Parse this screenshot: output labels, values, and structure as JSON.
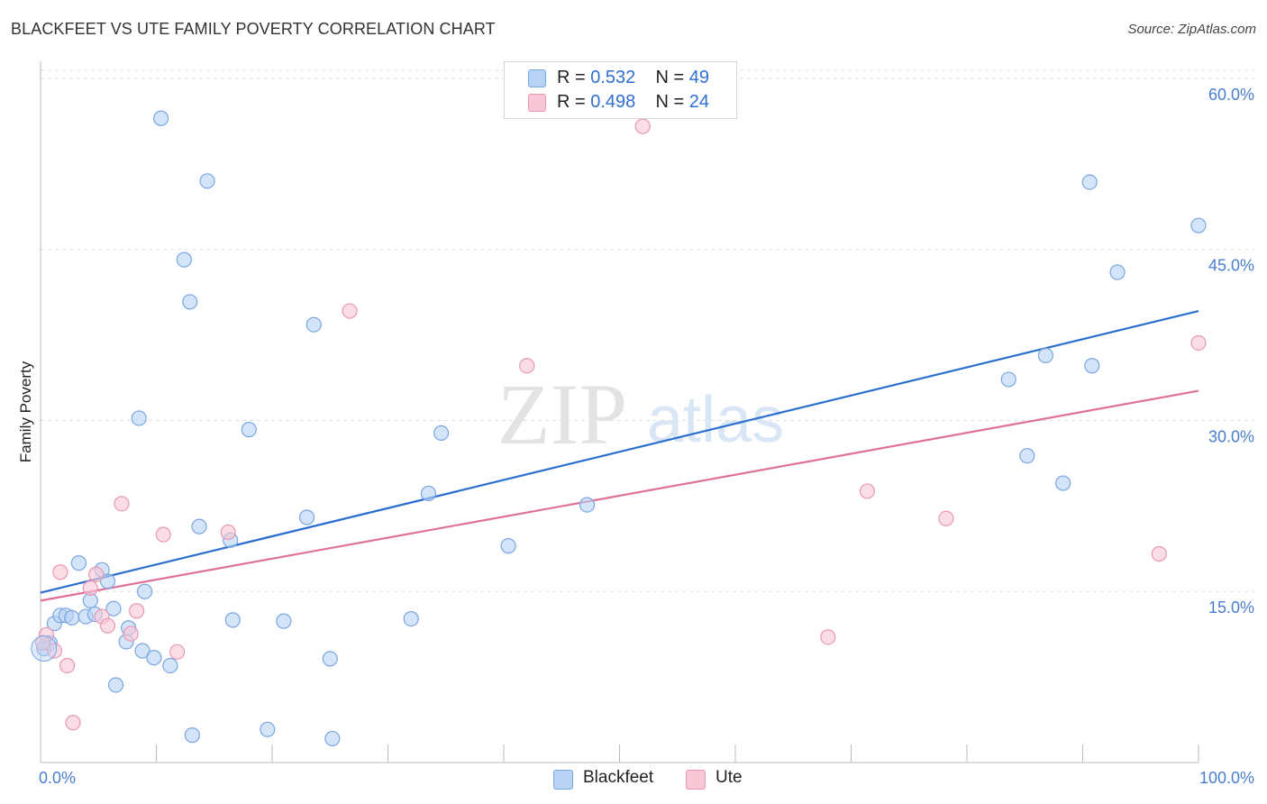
{
  "title": "BLACKFEET VS UTE FAMILY POVERTY CORRELATION CHART",
  "source": "Source: ZipAtlas.com",
  "watermark": {
    "zip": "ZIP",
    "atlas": "atlas"
  },
  "colors": {
    "blackfeet_fill": "#b8d2f5",
    "blackfeet_stroke": "#7aa6e0",
    "blackfeet_line": "#2a6fcf",
    "ute_fill": "#f9c6d6",
    "ute_stroke": "#e897b2",
    "ute_line": "#e0709a",
    "tick_label": "#4a7fcf"
  },
  "legend": {
    "rows": [
      {
        "r_label": "R = ",
        "r_value": "0.532",
        "n_label": "N = ",
        "n_value": "49"
      },
      {
        "r_label": "R = ",
        "r_value": "0.498",
        "n_label": "N = ",
        "n_value": "24"
      }
    ]
  },
  "bottom_legend": [
    "Blackfeet",
    "Ute"
  ],
  "chart_data": {
    "type": "scatter",
    "title": "BLACKFEET VS UTE FAMILY POVERTY CORRELATION CHART",
    "xlabel": "",
    "ylabel": "Family Poverty",
    "xlim": [
      0,
      100
    ],
    "ylim": [
      0,
      61.5
    ],
    "x_tick_labels": [
      {
        "value": 0,
        "label": "0.0%"
      },
      {
        "value": 100,
        "label": "100.0%"
      }
    ],
    "x_minor_ticks": [
      10,
      20,
      30,
      40,
      50,
      60,
      70,
      80,
      90,
      100
    ],
    "y_ticks": [
      {
        "value": 15,
        "label": "15.0%"
      },
      {
        "value": 30,
        "label": "30.0%"
      },
      {
        "value": 45,
        "label": "45.0%"
      },
      {
        "value": 60,
        "label": "60.0%"
      }
    ],
    "grid": true,
    "legend_position": "top-center",
    "series": [
      {
        "name": "Blackfeet",
        "r": 0.532,
        "n": 49,
        "trend": {
          "x": [
            0,
            100
          ],
          "y": [
            14.9,
            39.6
          ]
        },
        "points": [
          [
            0.3,
            10.0
          ],
          [
            0.8,
            10.5
          ],
          [
            1.2,
            12.2
          ],
          [
            1.7,
            12.9
          ],
          [
            2.2,
            12.9
          ],
          [
            2.7,
            12.7
          ],
          [
            3.3,
            17.5
          ],
          [
            3.9,
            12.8
          ],
          [
            4.3,
            14.2
          ],
          [
            4.7,
            13.0
          ],
          [
            5.3,
            16.9
          ],
          [
            5.8,
            15.9
          ],
          [
            6.3,
            13.5
          ],
          [
            6.5,
            6.8
          ],
          [
            7.4,
            10.6
          ],
          [
            7.6,
            11.8
          ],
          [
            8.5,
            30.2
          ],
          [
            8.8,
            9.8
          ],
          [
            9.0,
            15.0
          ],
          [
            9.8,
            9.2
          ],
          [
            10.4,
            56.5
          ],
          [
            11.2,
            8.5
          ],
          [
            12.4,
            44.1
          ],
          [
            12.9,
            40.4
          ],
          [
            13.1,
            2.4
          ],
          [
            13.7,
            20.7
          ],
          [
            14.4,
            51.0
          ],
          [
            16.4,
            19.5
          ],
          [
            16.6,
            12.5
          ],
          [
            18.0,
            29.2
          ],
          [
            19.6,
            2.9
          ],
          [
            21.0,
            12.4
          ],
          [
            23.0,
            21.5
          ],
          [
            23.6,
            38.4
          ],
          [
            25.0,
            9.1
          ],
          [
            25.2,
            2.1
          ],
          [
            32.0,
            12.6
          ],
          [
            33.5,
            23.6
          ],
          [
            34.6,
            28.9
          ],
          [
            40.4,
            19.0
          ],
          [
            47.2,
            22.6
          ],
          [
            83.6,
            33.6
          ],
          [
            85.2,
            26.9
          ],
          [
            86.8,
            35.7
          ],
          [
            88.3,
            24.5
          ],
          [
            90.6,
            50.9
          ],
          [
            90.8,
            34.8
          ],
          [
            93.0,
            43.0
          ],
          [
            100.0,
            47.1
          ]
        ]
      },
      {
        "name": "Ute",
        "r": 0.498,
        "n": 24,
        "trend": {
          "x": [
            0,
            100
          ],
          "y": [
            14.2,
            32.6
          ]
        },
        "points": [
          [
            0.5,
            11.2
          ],
          [
            1.2,
            9.8
          ],
          [
            1.7,
            16.7
          ],
          [
            2.3,
            8.5
          ],
          [
            2.8,
            3.5
          ],
          [
            4.3,
            15.3
          ],
          [
            4.8,
            16.5
          ],
          [
            5.3,
            12.8
          ],
          [
            5.8,
            12.0
          ],
          [
            7.0,
            22.7
          ],
          [
            7.8,
            11.3
          ],
          [
            8.3,
            13.3
          ],
          [
            10.6,
            20.0
          ],
          [
            11.8,
            9.7
          ],
          [
            16.2,
            20.2
          ],
          [
            26.7,
            39.6
          ],
          [
            42.0,
            34.8
          ],
          [
            52.0,
            55.8
          ],
          [
            68.0,
            11.0
          ],
          [
            71.4,
            23.8
          ],
          [
            78.2,
            21.4
          ],
          [
            96.6,
            18.3
          ],
          [
            100.0,
            36.8
          ],
          [
            0.2,
            10.5
          ]
        ]
      }
    ]
  }
}
